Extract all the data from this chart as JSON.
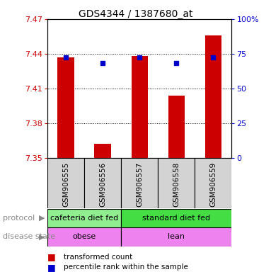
{
  "title": "GDS4344 / 1387680_at",
  "samples": [
    "GSM906555",
    "GSM906556",
    "GSM906557",
    "GSM906558",
    "GSM906559"
  ],
  "red_values": [
    7.437,
    7.362,
    7.438,
    7.404,
    7.456
  ],
  "blue_values": [
    7.437,
    7.432,
    7.437,
    7.432,
    7.437
  ],
  "ymin": 7.35,
  "ymax": 7.47,
  "yticks": [
    7.35,
    7.38,
    7.41,
    7.44,
    7.47
  ],
  "y2ticks": [
    0,
    25,
    50,
    75,
    100
  ],
  "y2labels": [
    "0",
    "25",
    "50",
    "75",
    "100%"
  ],
  "protocol_labels": [
    "cafeteria diet fed",
    "standard diet fed"
  ],
  "protocol_colors": [
    "#90EE90",
    "#44DD44"
  ],
  "disease_labels": [
    "obese",
    "lean"
  ],
  "disease_color": "#EE82EE",
  "cafeteria_count": 2,
  "standard_count": 3,
  "bar_color": "#CC0000",
  "dot_color": "#0000CC",
  "background_color": "#ffffff",
  "left_label_color": "#CC0000",
  "right_label_color": "#0000CC",
  "sample_box_color": "#D3D3D3",
  "legend_red_label": "transformed count",
  "legend_blue_label": "percentile rank within the sample"
}
